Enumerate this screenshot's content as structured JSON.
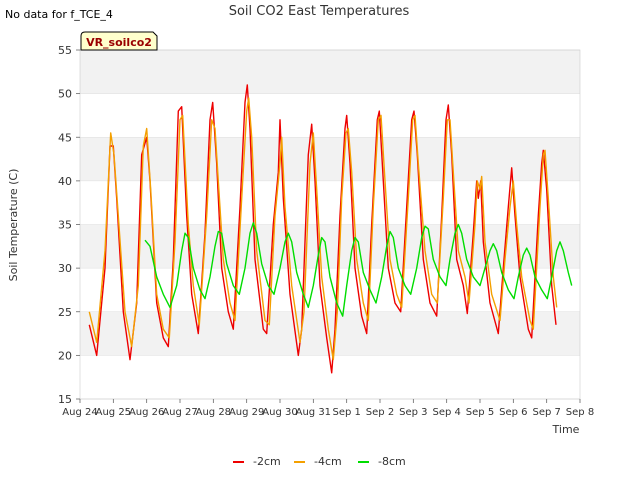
{
  "top_note": "No data for f_TCE_4",
  "chart_data": {
    "type": "line",
    "title": "Soil CO2 East Temperatures",
    "xlabel": "Time",
    "ylabel": "Soil Temperature (C)",
    "ylim": [
      15,
      55
    ],
    "yticks": [
      15,
      20,
      25,
      30,
      35,
      40,
      45,
      50,
      55
    ],
    "xlim": [
      0,
      15
    ],
    "xticks": [
      {
        "x": 0,
        "label": "Aug 24"
      },
      {
        "x": 1,
        "label": "Aug 25"
      },
      {
        "x": 2,
        "label": "Aug 26"
      },
      {
        "x": 3,
        "label": "Aug 27"
      },
      {
        "x": 4,
        "label": "Aug 28"
      },
      {
        "x": 5,
        "label": "Aug 29"
      },
      {
        "x": 6,
        "label": "Aug 30"
      },
      {
        "x": 7,
        "label": "Aug 31"
      },
      {
        "x": 8,
        "label": "Sep 1"
      },
      {
        "x": 9,
        "label": "Sep 2"
      },
      {
        "x": 10,
        "label": "Sep 3"
      },
      {
        "x": 11,
        "label": "Sep 4"
      },
      {
        "x": 12,
        "label": "Sep 5"
      },
      {
        "x": 13,
        "label": "Sep 6"
      },
      {
        "x": 14,
        "label": "Sep 7"
      },
      {
        "x": 15,
        "label": "Sep 8"
      }
    ],
    "grid": true,
    "legend_position": "bottom-center",
    "inset_label": "VR_soilco2",
    "series": [
      {
        "name": "-2cm",
        "color": "#ee0000",
        "points": [
          [
            0.28,
            23.5
          ],
          [
            0.5,
            20
          ],
          [
            0.75,
            30
          ],
          [
            0.9,
            44
          ],
          [
            1.0,
            44
          ],
          [
            1.1,
            38
          ],
          [
            1.3,
            25
          ],
          [
            1.5,
            19.5
          ],
          [
            1.7,
            26
          ],
          [
            1.85,
            43
          ],
          [
            2.0,
            45
          ],
          [
            2.1,
            40
          ],
          [
            2.3,
            26
          ],
          [
            2.5,
            22
          ],
          [
            2.65,
            21
          ],
          [
            2.8,
            31
          ],
          [
            2.95,
            48
          ],
          [
            3.05,
            48.5
          ],
          [
            3.2,
            36
          ],
          [
            3.35,
            27
          ],
          [
            3.55,
            22.5
          ],
          [
            3.75,
            34
          ],
          [
            3.9,
            47
          ],
          [
            3.98,
            49
          ],
          [
            4.1,
            42
          ],
          [
            4.25,
            30
          ],
          [
            4.45,
            25
          ],
          [
            4.6,
            23
          ],
          [
            4.8,
            37
          ],
          [
            4.95,
            49
          ],
          [
            5.02,
            51
          ],
          [
            5.1,
            46
          ],
          [
            5.25,
            31
          ],
          [
            5.5,
            23
          ],
          [
            5.6,
            22.5
          ],
          [
            5.8,
            35
          ],
          [
            5.95,
            41
          ],
          [
            6.0,
            47
          ],
          [
            6.1,
            38
          ],
          [
            6.3,
            27
          ],
          [
            6.55,
            20
          ],
          [
            6.65,
            23
          ],
          [
            6.85,
            43
          ],
          [
            6.95,
            46.5
          ],
          [
            7.05,
            40
          ],
          [
            7.2,
            28
          ],
          [
            7.4,
            22
          ],
          [
            7.55,
            18
          ],
          [
            7.65,
            23
          ],
          [
            7.8,
            36
          ],
          [
            7.95,
            46
          ],
          [
            8.0,
            47.5
          ],
          [
            8.1,
            42
          ],
          [
            8.25,
            30
          ],
          [
            8.45,
            24.5
          ],
          [
            8.6,
            22.5
          ],
          [
            8.75,
            35
          ],
          [
            8.92,
            47
          ],
          [
            8.98,
            48
          ],
          [
            9.1,
            40
          ],
          [
            9.25,
            30
          ],
          [
            9.45,
            26
          ],
          [
            9.62,
            25
          ],
          [
            9.8,
            37
          ],
          [
            9.95,
            47
          ],
          [
            10.02,
            48
          ],
          [
            10.12,
            43
          ],
          [
            10.3,
            31
          ],
          [
            10.5,
            26
          ],
          [
            10.7,
            24.5
          ],
          [
            10.85,
            36
          ],
          [
            10.98,
            47
          ],
          [
            11.05,
            48.7
          ],
          [
            11.15,
            43
          ],
          [
            11.3,
            31
          ],
          [
            11.5,
            28
          ],
          [
            11.62,
            24.8
          ],
          [
            11.8,
            34
          ],
          [
            11.9,
            40
          ],
          [
            11.95,
            38
          ],
          [
            12.02,
            40
          ],
          [
            12.1,
            33
          ],
          [
            12.3,
            26
          ],
          [
            12.55,
            22.5
          ],
          [
            12.7,
            30
          ],
          [
            12.85,
            37
          ],
          [
            12.95,
            41.5
          ],
          [
            13.05,
            36
          ],
          [
            13.2,
            29
          ],
          [
            13.45,
            23
          ],
          [
            13.55,
            22
          ],
          [
            13.75,
            36
          ],
          [
            13.85,
            42
          ],
          [
            13.9,
            43.5
          ],
          [
            14.0,
            39
          ],
          [
            14.15,
            28
          ],
          [
            14.28,
            23.5
          ]
        ]
      },
      {
        "name": "-4cm",
        "color": "#f4a000",
        "points": [
          [
            0.28,
            25
          ],
          [
            0.5,
            21.5
          ],
          [
            0.75,
            32
          ],
          [
            0.92,
            45.5
          ],
          [
            1.02,
            43
          ],
          [
            1.15,
            36
          ],
          [
            1.35,
            25
          ],
          [
            1.55,
            21
          ],
          [
            1.75,
            28
          ],
          [
            1.9,
            44
          ],
          [
            2.0,
            46
          ],
          [
            2.12,
            39
          ],
          [
            2.3,
            27
          ],
          [
            2.5,
            23
          ],
          [
            2.68,
            22
          ],
          [
            2.85,
            33
          ],
          [
            3.0,
            47
          ],
          [
            3.08,
            47.5
          ],
          [
            3.25,
            35
          ],
          [
            3.4,
            28
          ],
          [
            3.58,
            23.5
          ],
          [
            3.8,
            36
          ],
          [
            3.95,
            47
          ],
          [
            4.05,
            46
          ],
          [
            4.15,
            40
          ],
          [
            4.3,
            31
          ],
          [
            4.5,
            26
          ],
          [
            4.65,
            24
          ],
          [
            4.85,
            38
          ],
          [
            5.0,
            48
          ],
          [
            5.06,
            49.5
          ],
          [
            5.15,
            45
          ],
          [
            5.3,
            32
          ],
          [
            5.55,
            24
          ],
          [
            5.68,
            23.5
          ],
          [
            5.85,
            36
          ],
          [
            6.0,
            42
          ],
          [
            6.05,
            45
          ],
          [
            6.15,
            37
          ],
          [
            6.35,
            28
          ],
          [
            6.6,
            21.5
          ],
          [
            6.72,
            25
          ],
          [
            6.9,
            42
          ],
          [
            7.0,
            45.5
          ],
          [
            7.1,
            39
          ],
          [
            7.25,
            29
          ],
          [
            7.45,
            23
          ],
          [
            7.6,
            19.5
          ],
          [
            7.72,
            25
          ],
          [
            7.85,
            38
          ],
          [
            7.98,
            45.5
          ],
          [
            8.05,
            46
          ],
          [
            8.15,
            41
          ],
          [
            8.3,
            31
          ],
          [
            8.5,
            26
          ],
          [
            8.65,
            24
          ],
          [
            8.8,
            37
          ],
          [
            8.95,
            47
          ],
          [
            9.03,
            47.5
          ],
          [
            9.15,
            40
          ],
          [
            9.3,
            31
          ],
          [
            9.5,
            27
          ],
          [
            9.65,
            25.5
          ],
          [
            9.85,
            38
          ],
          [
            9.98,
            47
          ],
          [
            10.05,
            47.5
          ],
          [
            10.15,
            42
          ],
          [
            10.35,
            32
          ],
          [
            10.55,
            27
          ],
          [
            10.72,
            26
          ],
          [
            10.9,
            38
          ],
          [
            11.02,
            47
          ],
          [
            11.1,
            47
          ],
          [
            11.2,
            41
          ],
          [
            11.35,
            32
          ],
          [
            11.55,
            29
          ],
          [
            11.67,
            26
          ],
          [
            11.85,
            35
          ],
          [
            11.92,
            40
          ],
          [
            12.0,
            39
          ],
          [
            12.05,
            40.5
          ],
          [
            12.15,
            33
          ],
          [
            12.35,
            27
          ],
          [
            12.6,
            24
          ],
          [
            12.75,
            31
          ],
          [
            12.9,
            37
          ],
          [
            13.0,
            40
          ],
          [
            13.1,
            35
          ],
          [
            13.25,
            29
          ],
          [
            13.5,
            24
          ],
          [
            13.6,
            23
          ],
          [
            13.8,
            37
          ],
          [
            13.9,
            43
          ],
          [
            13.95,
            43.5
          ],
          [
            14.05,
            38
          ],
          [
            14.2,
            29
          ],
          [
            14.3,
            25.5
          ]
        ]
      },
      {
        "name": "-8cm",
        "color": "#00dd00",
        "points": [
          [
            1.95,
            33.2
          ],
          [
            2.1,
            32.5
          ],
          [
            2.3,
            29
          ],
          [
            2.5,
            27
          ],
          [
            2.7,
            25.5
          ],
          [
            2.9,
            28
          ],
          [
            3.05,
            32
          ],
          [
            3.15,
            34
          ],
          [
            3.25,
            33.5
          ],
          [
            3.4,
            30
          ],
          [
            3.6,
            27.5
          ],
          [
            3.75,
            26.5
          ],
          [
            3.9,
            29
          ],
          [
            4.05,
            32.5
          ],
          [
            4.15,
            34.2
          ],
          [
            4.25,
            34
          ],
          [
            4.4,
            30.5
          ],
          [
            4.6,
            28
          ],
          [
            4.78,
            27
          ],
          [
            4.95,
            30
          ],
          [
            5.1,
            34
          ],
          [
            5.2,
            35.2
          ],
          [
            5.3,
            34
          ],
          [
            5.45,
            30.5
          ],
          [
            5.65,
            28
          ],
          [
            5.82,
            27
          ],
          [
            6.0,
            30
          ],
          [
            6.15,
            33
          ],
          [
            6.25,
            34
          ],
          [
            6.35,
            33
          ],
          [
            6.5,
            29.5
          ],
          [
            6.7,
            27
          ],
          [
            6.85,
            25.5
          ],
          [
            7.0,
            28
          ],
          [
            7.15,
            31.5
          ],
          [
            7.25,
            33.5
          ],
          [
            7.35,
            33
          ],
          [
            7.5,
            29
          ],
          [
            7.7,
            26
          ],
          [
            7.88,
            24.5
          ],
          [
            8.0,
            28
          ],
          [
            8.15,
            32
          ],
          [
            8.25,
            33.5
          ],
          [
            8.35,
            33
          ],
          [
            8.5,
            29.5
          ],
          [
            8.7,
            27.5
          ],
          [
            8.88,
            26
          ],
          [
            9.05,
            29
          ],
          [
            9.2,
            32.5
          ],
          [
            9.3,
            34.2
          ],
          [
            9.4,
            33.5
          ],
          [
            9.55,
            30
          ],
          [
            9.75,
            28
          ],
          [
            9.92,
            27
          ],
          [
            10.1,
            30
          ],
          [
            10.25,
            33.5
          ],
          [
            10.35,
            34.8
          ],
          [
            10.45,
            34.5
          ],
          [
            10.6,
            31
          ],
          [
            10.8,
            29
          ],
          [
            10.98,
            28
          ],
          [
            11.1,
            31
          ],
          [
            11.25,
            34
          ],
          [
            11.35,
            35
          ],
          [
            11.45,
            34
          ],
          [
            11.6,
            31
          ],
          [
            11.8,
            29
          ],
          [
            12.0,
            28
          ],
          [
            12.15,
            30
          ],
          [
            12.3,
            32
          ],
          [
            12.4,
            32.8
          ],
          [
            12.5,
            32
          ],
          [
            12.65,
            29.5
          ],
          [
            12.85,
            27.5
          ],
          [
            13.02,
            26.5
          ],
          [
            13.15,
            29
          ],
          [
            13.3,
            31.5
          ],
          [
            13.4,
            32.3
          ],
          [
            13.5,
            31.5
          ],
          [
            13.65,
            29
          ],
          [
            13.85,
            27.5
          ],
          [
            14.02,
            26.5
          ],
          [
            14.15,
            29
          ],
          [
            14.3,
            32
          ],
          [
            14.4,
            33
          ],
          [
            14.5,
            32
          ],
          [
            14.65,
            29.5
          ],
          [
            14.75,
            28
          ]
        ]
      }
    ]
  }
}
